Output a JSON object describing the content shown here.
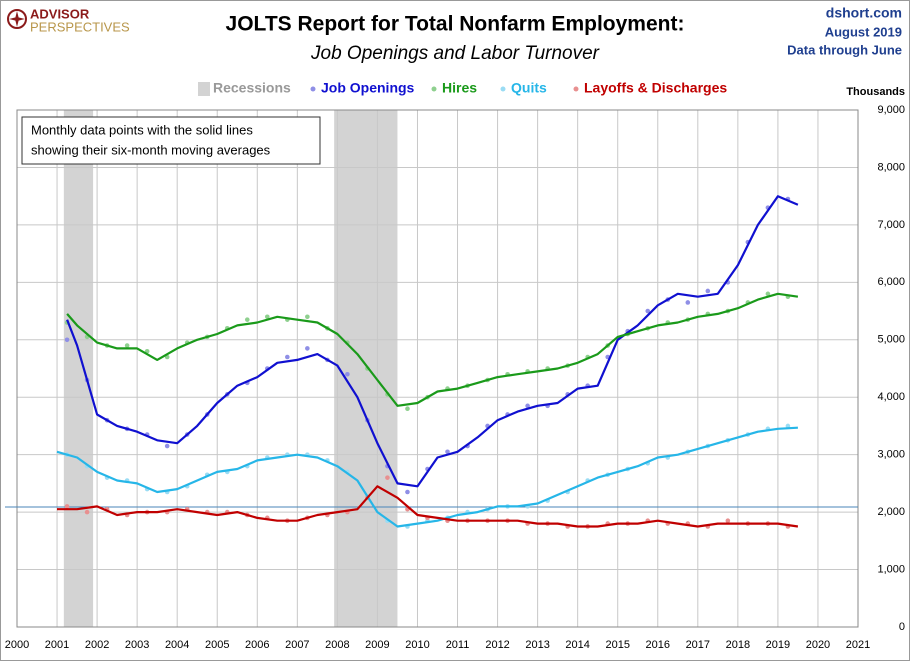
{
  "logo": {
    "line1": "ADVISOR",
    "line2": "PERSPECTIVES"
  },
  "source": {
    "site": "dshort.com",
    "date": "August 2019",
    "note": "Data through June"
  },
  "chart_data": {
    "type": "line",
    "title": "JOLTS Report for Total Nonfarm Employment:",
    "subtitle": "Job Openings and Labor Turnover",
    "y_axis_label": "Thousands",
    "annotation": [
      "Monthly data points with the solid lines",
      "showing their six-month moving averages"
    ],
    "xlim": [
      2000,
      2021
    ],
    "xticks": [
      2000,
      2001,
      2002,
      2003,
      2004,
      2005,
      2006,
      2007,
      2008,
      2009,
      2010,
      2011,
      2012,
      2013,
      2014,
      2015,
      2016,
      2017,
      2018,
      2019,
      2020,
      2021
    ],
    "ylim": [
      0,
      9000
    ],
    "yticks": [
      0,
      {
        "value": 1000,
        "label": "1,000"
      },
      {
        "value": 2000,
        "label": "2,000"
      },
      {
        "value": 3000,
        "label": "3,000"
      },
      {
        "value": 4000,
        "label": "4,000"
      },
      {
        "value": 5000,
        "label": "5,000"
      },
      {
        "value": 6000,
        "label": "6,000"
      },
      {
        "value": 7000,
        "label": "7,000"
      },
      {
        "value": 8000,
        "label": "8,000"
      },
      {
        "value": 9000,
        "label": "9,000"
      }
    ],
    "grid": true,
    "reference_line": {
      "value": 2090,
      "color": "#4a86b8"
    },
    "recessions": {
      "name": "Recessions",
      "color": "#d3d3d3",
      "spans": [
        [
          2001.17,
          2001.9
        ],
        [
          2007.92,
          2009.5
        ]
      ]
    },
    "series": [
      {
        "name": "Job Openings",
        "color": "#1010d0",
        "point_color": "#8f8fe6",
        "x": [
          2001.25,
          2001.5,
          2002.0,
          2002.5,
          2003.0,
          2003.5,
          2004.0,
          2004.5,
          2005.0,
          2005.5,
          2006.0,
          2006.5,
          2007.0,
          2007.5,
          2008.0,
          2008.5,
          2009.0,
          2009.5,
          2010.0,
          2010.5,
          2011.0,
          2011.5,
          2012.0,
          2012.5,
          2013.0,
          2013.5,
          2014.0,
          2014.5,
          2015.0,
          2015.5,
          2016.0,
          2016.5,
          2017.0,
          2017.5,
          2018.0,
          2018.5,
          2019.0,
          2019.5
        ],
        "values": [
          5350,
          4900,
          3700,
          3500,
          3400,
          3250,
          3200,
          3500,
          3900,
          4200,
          4350,
          4600,
          4650,
          4750,
          4550,
          4000,
          3200,
          2500,
          2450,
          2950,
          3050,
          3300,
          3600,
          3750,
          3850,
          3900,
          4150,
          4200,
          5000,
          5250,
          5600,
          5800,
          5750,
          5800,
          6300,
          7000,
          7500,
          7350
        ],
        "points_x": [
          2001.25,
          2001.75,
          2002.25,
          2002.75,
          2003.25,
          2003.75,
          2004.25,
          2004.75,
          2005.25,
          2005.75,
          2006.25,
          2006.75,
          2007.25,
          2007.75,
          2008.25,
          2008.75,
          2009.25,
          2009.75,
          2010.25,
          2010.75,
          2011.25,
          2011.75,
          2012.25,
          2012.75,
          2013.25,
          2013.75,
          2014.25,
          2014.75,
          2015.25,
          2015.75,
          2016.25,
          2016.75,
          2017.25,
          2017.75,
          2018.25,
          2018.75,
          2019.25
        ],
        "points": [
          5000,
          4300,
          3600,
          3450,
          3350,
          3150,
          3350,
          3700,
          4050,
          4250,
          4500,
          4700,
          4850,
          4650,
          4400,
          3600,
          2800,
          2350,
          2750,
          3050,
          3150,
          3500,
          3700,
          3850,
          3850,
          4050,
          4200,
          4700,
          5150,
          5500,
          5700,
          5650,
          5850,
          6000,
          6700,
          7300,
          7450
        ]
      },
      {
        "name": "Hires",
        "color": "#1a9a1a",
        "point_color": "#8fd08f",
        "x": [
          2001.25,
          2001.5,
          2002.0,
          2002.5,
          2003.0,
          2003.5,
          2004.0,
          2004.5,
          2005.0,
          2005.5,
          2006.0,
          2006.5,
          2007.0,
          2007.5,
          2008.0,
          2008.5,
          2009.0,
          2009.5,
          2010.0,
          2010.5,
          2011.0,
          2011.5,
          2012.0,
          2012.5,
          2013.0,
          2013.5,
          2014.0,
          2014.5,
          2015.0,
          2015.5,
          2016.0,
          2016.5,
          2017.0,
          2017.5,
          2018.0,
          2018.5,
          2019.0,
          2019.5
        ],
        "values": [
          5450,
          5250,
          4950,
          4850,
          4850,
          4650,
          4850,
          5000,
          5100,
          5250,
          5300,
          5400,
          5350,
          5300,
          5100,
          4750,
          4300,
          3850,
          3900,
          4100,
          4150,
          4250,
          4350,
          4400,
          4450,
          4500,
          4600,
          4750,
          5050,
          5150,
          5250,
          5300,
          5400,
          5450,
          5550,
          5700,
          5800,
          5750
        ],
        "points_x": [
          2001.25,
          2001.75,
          2002.25,
          2002.75,
          2003.25,
          2003.75,
          2004.25,
          2004.75,
          2005.25,
          2005.75,
          2006.25,
          2006.75,
          2007.25,
          2007.75,
          2008.25,
          2008.75,
          2009.25,
          2009.75,
          2010.25,
          2010.75,
          2011.25,
          2011.75,
          2012.25,
          2012.75,
          2013.25,
          2013.75,
          2014.25,
          2014.75,
          2015.25,
          2015.75,
          2016.25,
          2016.75,
          2017.25,
          2017.75,
          2018.25,
          2018.75,
          2019.25
        ],
        "points": [
          5300,
          5050,
          4900,
          4900,
          4800,
          4700,
          4950,
          5050,
          5200,
          5350,
          5400,
          5350,
          5400,
          5200,
          4950,
          4500,
          4050,
          3800,
          4000,
          4150,
          4200,
          4300,
          4400,
          4450,
          4500,
          4550,
          4700,
          4900,
          5100,
          5200,
          5300,
          5350,
          5450,
          5500,
          5650,
          5800,
          5750
        ]
      },
      {
        "name": "Quits",
        "color": "#26b6e8",
        "point_color": "#9adcf4",
        "x": [
          2001.0,
          2001.5,
          2002.0,
          2002.5,
          2003.0,
          2003.5,
          2004.0,
          2004.5,
          2005.0,
          2005.5,
          2006.0,
          2006.5,
          2007.0,
          2007.5,
          2008.0,
          2008.5,
          2009.0,
          2009.5,
          2010.0,
          2010.5,
          2011.0,
          2011.5,
          2012.0,
          2012.5,
          2013.0,
          2013.5,
          2014.0,
          2014.5,
          2015.0,
          2015.5,
          2016.0,
          2016.5,
          2017.0,
          2017.5,
          2018.0,
          2018.5,
          2019.0,
          2019.5
        ],
        "values": [
          3050,
          2950,
          2700,
          2550,
          2500,
          2350,
          2400,
          2550,
          2700,
          2750,
          2900,
          2950,
          3000,
          2950,
          2800,
          2550,
          2000,
          1750,
          1800,
          1850,
          1950,
          2000,
          2100,
          2100,
          2150,
          2300,
          2450,
          2600,
          2700,
          2800,
          2950,
          3000,
          3100,
          3200,
          3300,
          3400,
          3450,
          3470
        ],
        "points_x": [
          2001.25,
          2001.75,
          2002.25,
          2002.75,
          2003.25,
          2003.75,
          2004.25,
          2004.75,
          2005.25,
          2005.75,
          2006.25,
          2006.75,
          2007.25,
          2007.75,
          2008.25,
          2008.75,
          2009.25,
          2009.75,
          2010.25,
          2010.75,
          2011.25,
          2011.75,
          2012.25,
          2012.75,
          2013.25,
          2013.75,
          2014.25,
          2014.75,
          2015.25,
          2015.75,
          2016.25,
          2016.75,
          2017.25,
          2017.75,
          2018.25,
          2018.75,
          2019.25
        ],
        "points": [
          3000,
          2800,
          2600,
          2550,
          2400,
          2350,
          2450,
          2650,
          2700,
          2800,
          2950,
          3000,
          3000,
          2900,
          2700,
          2250,
          1850,
          1750,
          1850,
          1900,
          2000,
          2050,
          2100,
          2100,
          2200,
          2350,
          2550,
          2650,
          2750,
          2850,
          2950,
          3050,
          3150,
          3250,
          3350,
          3450,
          3500
        ]
      },
      {
        "name": "Layoffs & Discharges",
        "color": "#c00000",
        "point_color": "#e89090",
        "x": [
          2001.0,
          2001.5,
          2002.0,
          2002.5,
          2003.0,
          2003.5,
          2004.0,
          2004.5,
          2005.0,
          2005.5,
          2006.0,
          2006.5,
          2007.0,
          2007.5,
          2008.0,
          2008.5,
          2009.0,
          2009.5,
          2010.0,
          2010.5,
          2011.0,
          2011.5,
          2012.0,
          2012.5,
          2013.0,
          2013.5,
          2014.0,
          2014.5,
          2015.0,
          2015.5,
          2016.0,
          2016.5,
          2017.0,
          2017.5,
          2018.0,
          2018.5,
          2019.0,
          2019.5
        ],
        "values": [
          2050,
          2050,
          2100,
          1950,
          2000,
          2000,
          2050,
          2000,
          1950,
          2000,
          1900,
          1850,
          1850,
          1950,
          2000,
          2050,
          2450,
          2250,
          1950,
          1900,
          1850,
          1850,
          1850,
          1850,
          1800,
          1800,
          1750,
          1750,
          1800,
          1800,
          1850,
          1800,
          1750,
          1800,
          1800,
          1800,
          1800,
          1750
        ],
        "points_x": [
          2001.25,
          2001.75,
          2002.25,
          2002.75,
          2003.25,
          2003.75,
          2004.25,
          2004.75,
          2005.25,
          2005.75,
          2006.25,
          2006.75,
          2007.25,
          2007.75,
          2008.25,
          2008.75,
          2009.25,
          2009.75,
          2010.25,
          2010.75,
          2011.25,
          2011.75,
          2012.25,
          2012.75,
          2013.25,
          2013.75,
          2014.25,
          2014.75,
          2015.25,
          2015.75,
          2016.25,
          2016.75,
          2017.25,
          2017.75,
          2018.25,
          2018.75,
          2019.25
        ],
        "points": [
          2100,
          2000,
          2050,
          1950,
          2000,
          2000,
          2050,
          2000,
          2000,
          1950,
          1900,
          1850,
          1900,
          1950,
          2000,
          2250,
          2600,
          2050,
          1900,
          1850,
          1850,
          1850,
          1850,
          1800,
          1800,
          1750,
          1750,
          1800,
          1800,
          1850,
          1800,
          1800,
          1750,
          1850,
          1800,
          1800,
          1750
        ]
      }
    ]
  }
}
